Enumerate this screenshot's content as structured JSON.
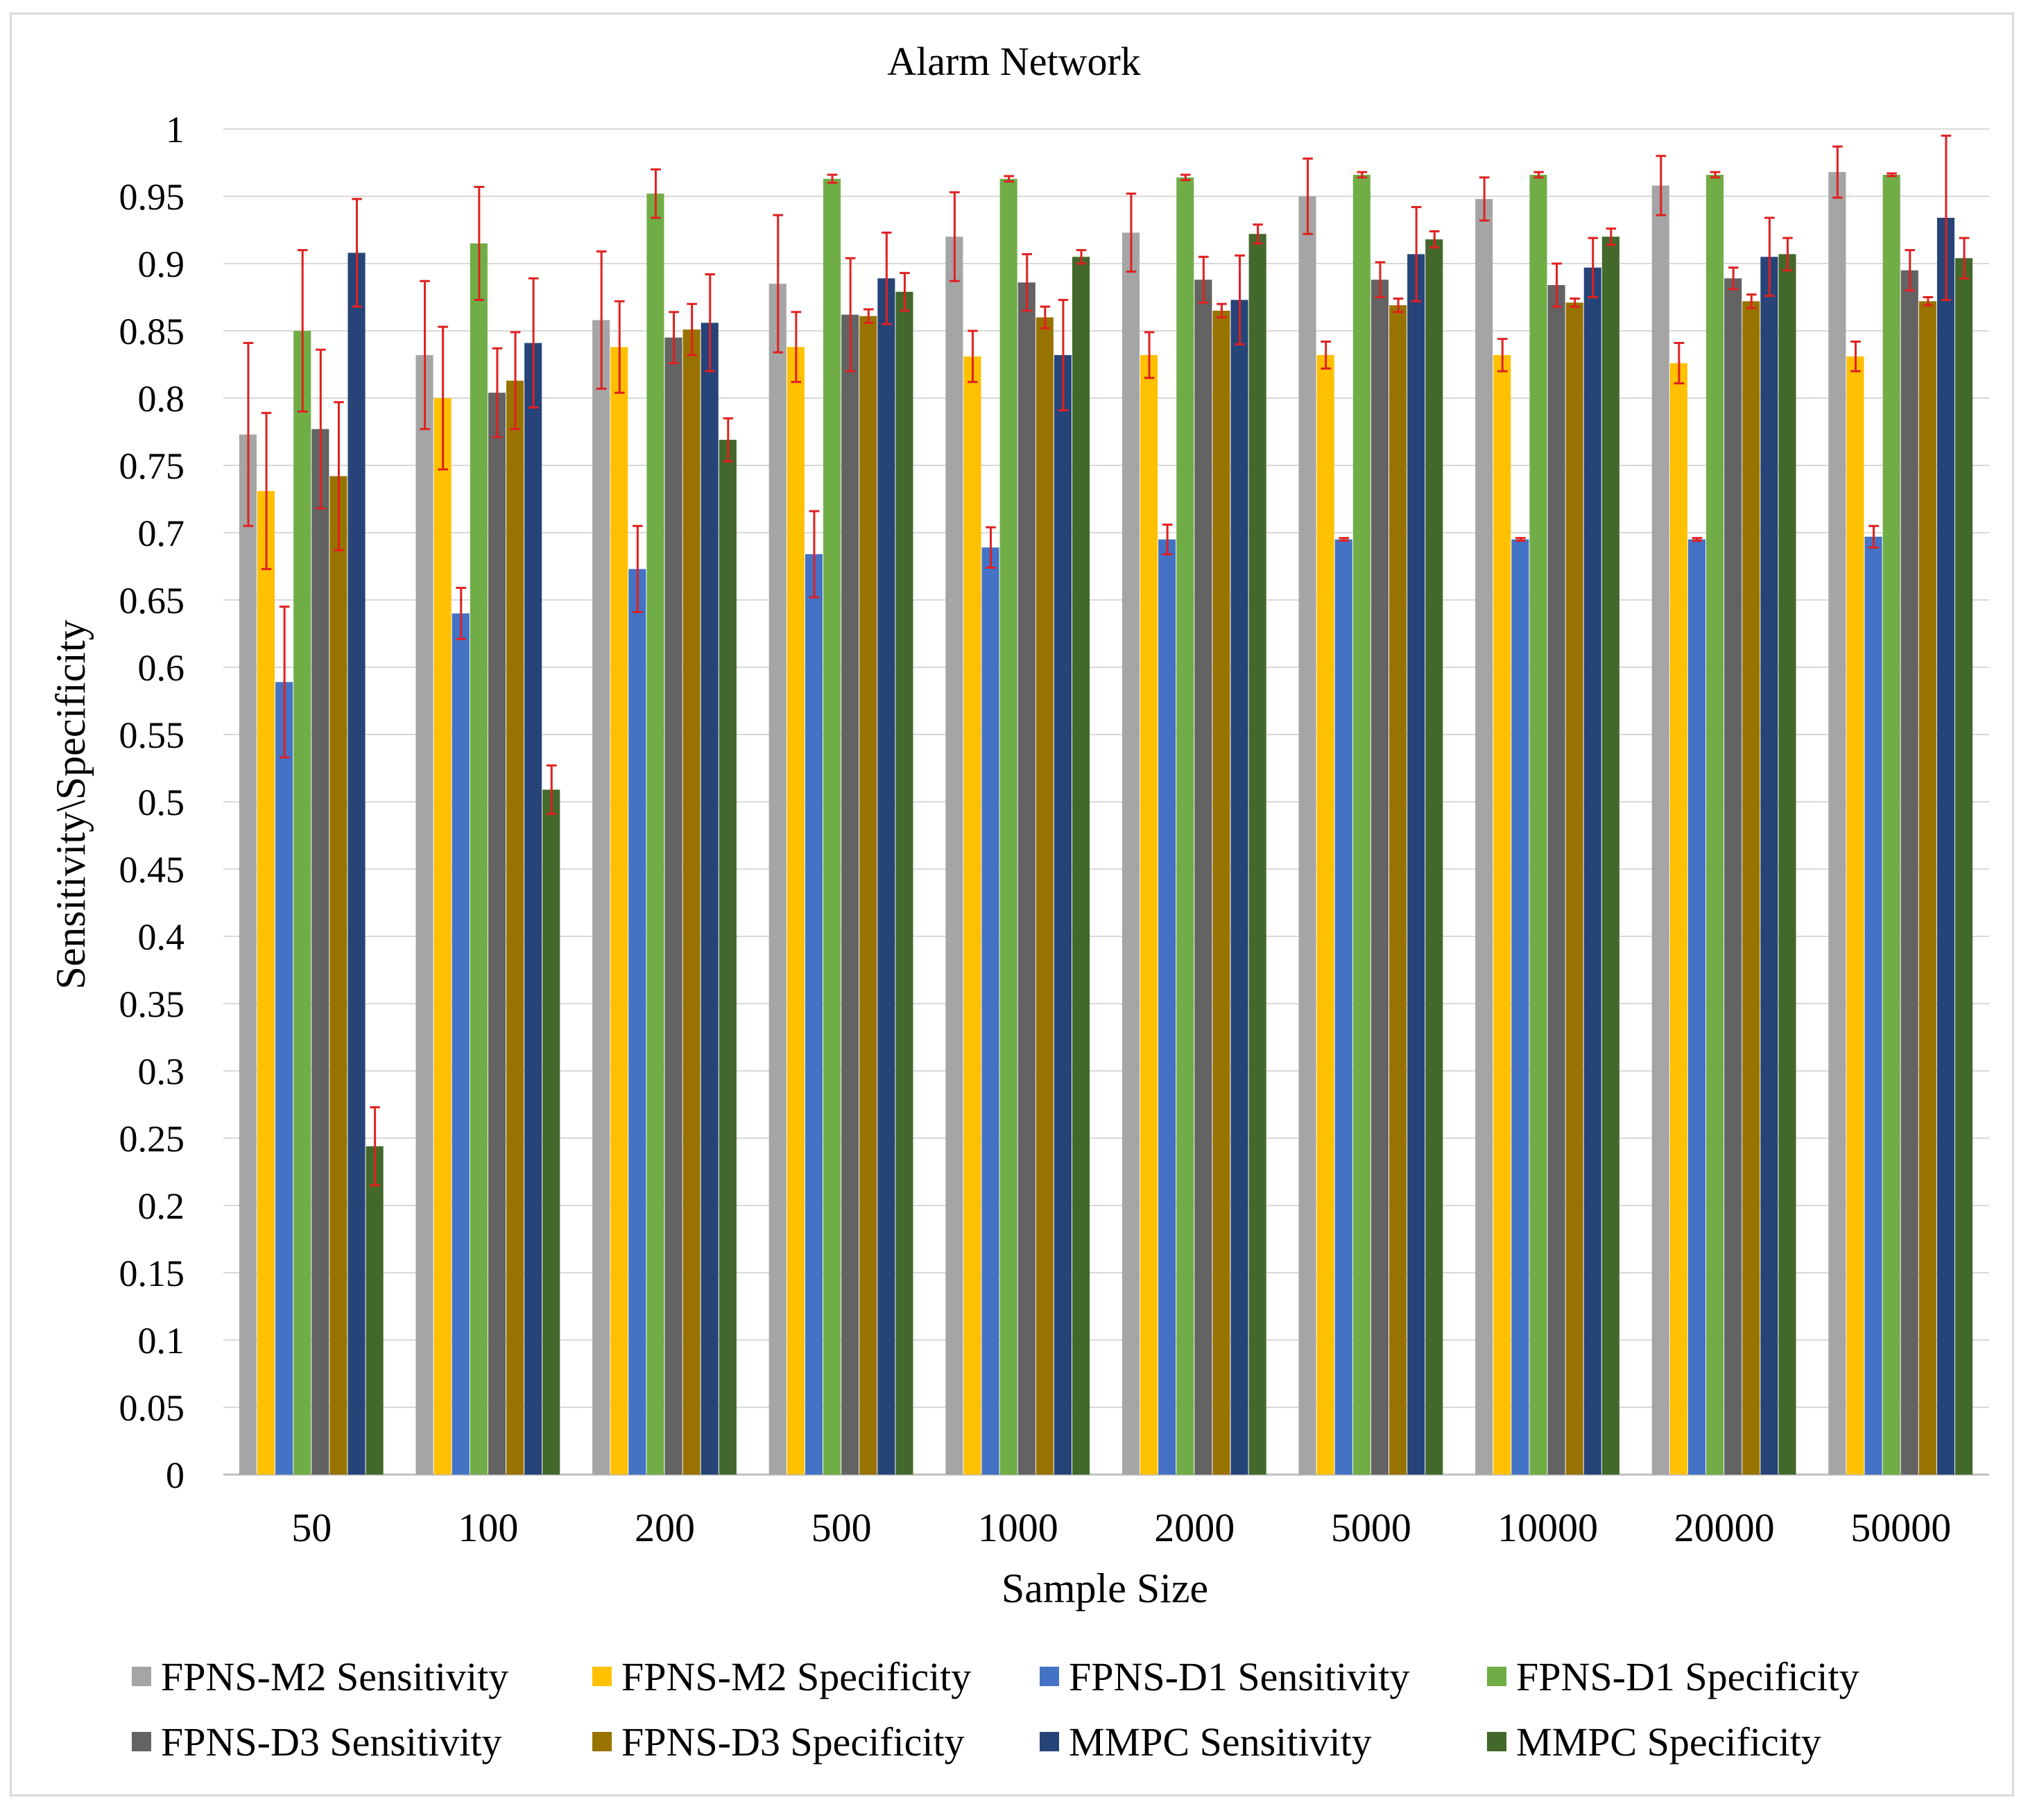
{
  "chart_data": {
    "type": "bar",
    "title": "Alarm Network",
    "xlabel": "Sample Size",
    "ylabel": "Sensitivity\\Specificity",
    "ylim": [
      0,
      1
    ],
    "yticks": [
      "0",
      "0.05",
      "0.1",
      "0.15",
      "0.2",
      "0.25",
      "0.3",
      "0.35",
      "0.4",
      "0.45",
      "0.5",
      "0.55",
      "0.6",
      "0.65",
      "0.7",
      "0.75",
      "0.8",
      "0.85",
      "0.9",
      "0.95",
      "1"
    ],
    "categories": [
      "50",
      "100",
      "200",
      "500",
      "1000",
      "2000",
      "5000",
      "10000",
      "20000",
      "50000"
    ],
    "grid": true,
    "legend_position": "bottom",
    "error_bar_color": "#e02020",
    "series": [
      {
        "name": "FPNS-M2 Sensitivity",
        "color": "#a5a5a5",
        "values": [
          0.773,
          0.832,
          0.858,
          0.885,
          0.92,
          0.923,
          0.95,
          0.948,
          0.958,
          0.968
        ],
        "errors": [
          0.068,
          0.055,
          0.051,
          0.051,
          0.033,
          0.029,
          0.028,
          0.016,
          0.022,
          0.019
        ]
      },
      {
        "name": "FPNS-M2 Specificity",
        "color": "#ffc000",
        "values": [
          0.731,
          0.8,
          0.838,
          0.838,
          0.831,
          0.832,
          0.832,
          0.832,
          0.826,
          0.831
        ],
        "errors": [
          0.058,
          0.053,
          0.034,
          0.026,
          0.019,
          0.017,
          0.01,
          0.012,
          0.015,
          0.011
        ]
      },
      {
        "name": "FPNS-D1 Sensitivity",
        "color": "#4472c4",
        "values": [
          0.589,
          0.64,
          0.673,
          0.684,
          0.689,
          0.695,
          0.695,
          0.695,
          0.695,
          0.697
        ],
        "errors": [
          0.056,
          0.019,
          0.032,
          0.032,
          0.015,
          0.011,
          0.001,
          0.001,
          0.001,
          0.008
        ]
      },
      {
        "name": "FPNS-D1 Specificity",
        "color": "#70ad47",
        "values": [
          0.85,
          0.915,
          0.952,
          0.963,
          0.963,
          0.964,
          0.966,
          0.966,
          0.966,
          0.966
        ],
        "errors": [
          0.06,
          0.042,
          0.018,
          0.003,
          0.002,
          0.002,
          0.002,
          0.002,
          0.002,
          0.001
        ]
      },
      {
        "name": "FPNS-D3 Sensitivity",
        "color": "#636363",
        "values": [
          0.777,
          0.804,
          0.845,
          0.862,
          0.886,
          0.888,
          0.888,
          0.884,
          0.889,
          0.895
        ],
        "errors": [
          0.059,
          0.033,
          0.019,
          0.042,
          0.021,
          0.017,
          0.013,
          0.016,
          0.008,
          0.015
        ]
      },
      {
        "name": "FPNS-D3 Specificity",
        "color": "#997300",
        "values": [
          0.742,
          0.813,
          0.851,
          0.861,
          0.86,
          0.865,
          0.869,
          0.871,
          0.872,
          0.872
        ],
        "errors": [
          0.055,
          0.036,
          0.019,
          0.005,
          0.008,
          0.005,
          0.005,
          0.003,
          0.005,
          0.003
        ]
      },
      {
        "name": "MMPC Sensitivity",
        "color": "#264478",
        "values": [
          0.908,
          0.841,
          0.856,
          0.889,
          0.832,
          0.873,
          0.907,
          0.897,
          0.905,
          0.934
        ],
        "errors": [
          0.04,
          0.048,
          0.036,
          0.034,
          0.041,
          0.033,
          0.035,
          0.022,
          0.029,
          0.061
        ]
      },
      {
        "name": "MMPC Specificity",
        "color": "#43682b",
        "values": [
          0.244,
          0.509,
          0.769,
          0.879,
          0.905,
          0.922,
          0.918,
          0.92,
          0.907,
          0.904
        ],
        "errors": [
          0.029,
          0.018,
          0.016,
          0.014,
          0.005,
          0.007,
          0.006,
          0.006,
          0.012,
          0.015
        ]
      }
    ]
  }
}
